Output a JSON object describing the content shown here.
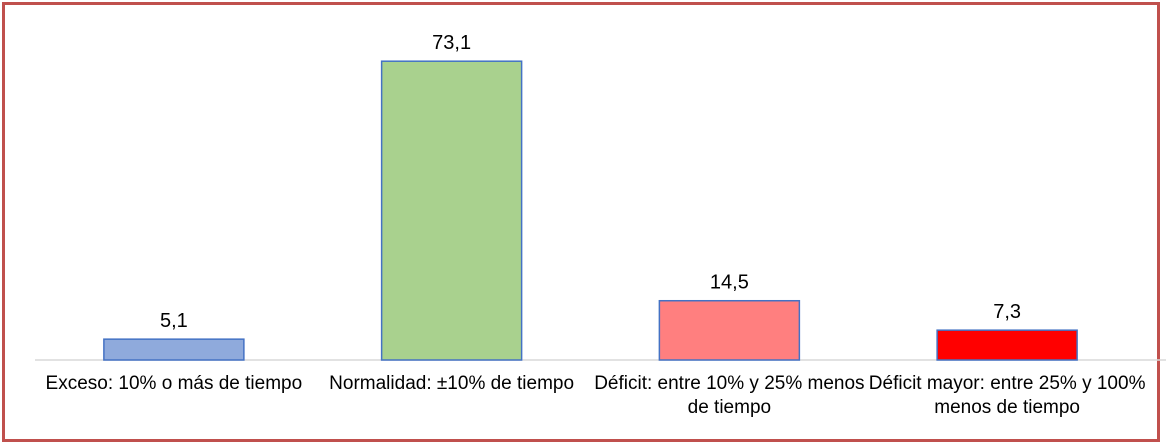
{
  "chart_data": {
    "type": "bar",
    "categories": [
      "Exceso: 10% o más de tiempo",
      "Normalidad: ±10% de tiempo",
      "Déficit: entre 10% y 25% menos de tiempo",
      "Déficit mayor: entre 25% y 100% menos de tiempo"
    ],
    "values": [
      5.1,
      73.1,
      14.5,
      7.3
    ],
    "value_labels": [
      "5,1",
      "73,1",
      "14,5",
      "7,3"
    ],
    "colors": [
      "#8faadc",
      "#a9d18e",
      "#ff7f7f",
      "#ff0000"
    ],
    "ylim": [
      0,
      80
    ]
  }
}
